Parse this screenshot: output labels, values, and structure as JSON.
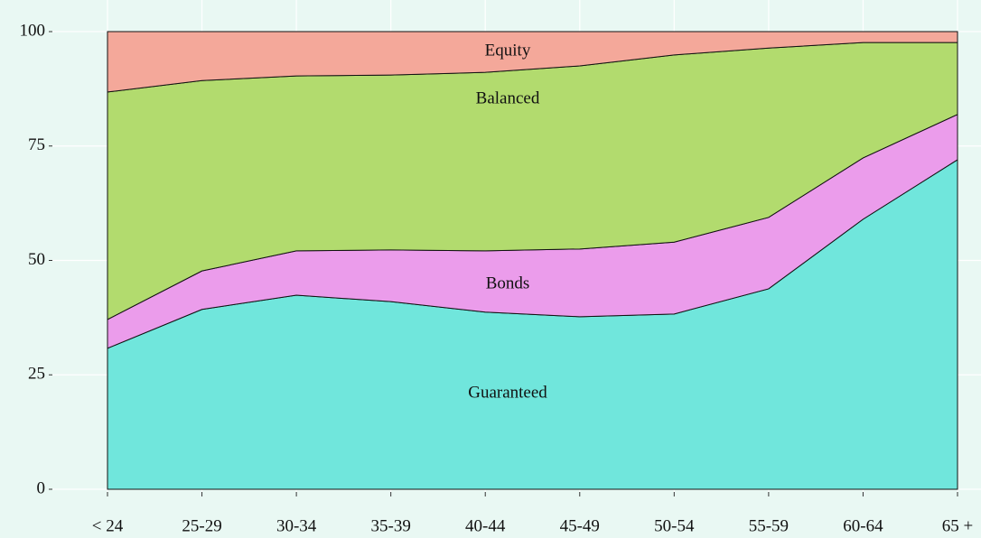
{
  "chart_data": {
    "type": "stacked_area",
    "categories": [
      "< 24",
      "25-29",
      "30-34",
      "35-39",
      "40-44",
      "45-49",
      "50-54",
      "55-59",
      "60-64",
      "65 +"
    ],
    "series": [
      {
        "name": "Guaranteed",
        "color": "#70e6dc",
        "values": [
          30.8,
          39.3,
          42.4,
          41.0,
          38.7,
          37.7,
          38.3,
          43.8,
          59.0,
          72.0
        ]
      },
      {
        "name": "Bonds",
        "color": "#eb9ceb",
        "values": [
          6.3,
          8.4,
          9.7,
          11.3,
          13.4,
          14.8,
          15.7,
          15.6,
          13.4,
          9.9
        ]
      },
      {
        "name": "Balanced",
        "color": "#b2db6e",
        "values": [
          49.7,
          41.6,
          38.2,
          38.2,
          39.0,
          40.0,
          40.9,
          37.0,
          25.2,
          15.7
        ]
      },
      {
        "name": "Equity",
        "color": "#f4a89a",
        "values": [
          13.2,
          10.7,
          9.7,
          9.5,
          8.9,
          7.5,
          5.1,
          3.6,
          2.4,
          2.4
        ]
      }
    ],
    "ylim": [
      0,
      100
    ],
    "yticks": [
      0,
      25,
      50,
      75,
      100
    ],
    "grid": true
  }
}
